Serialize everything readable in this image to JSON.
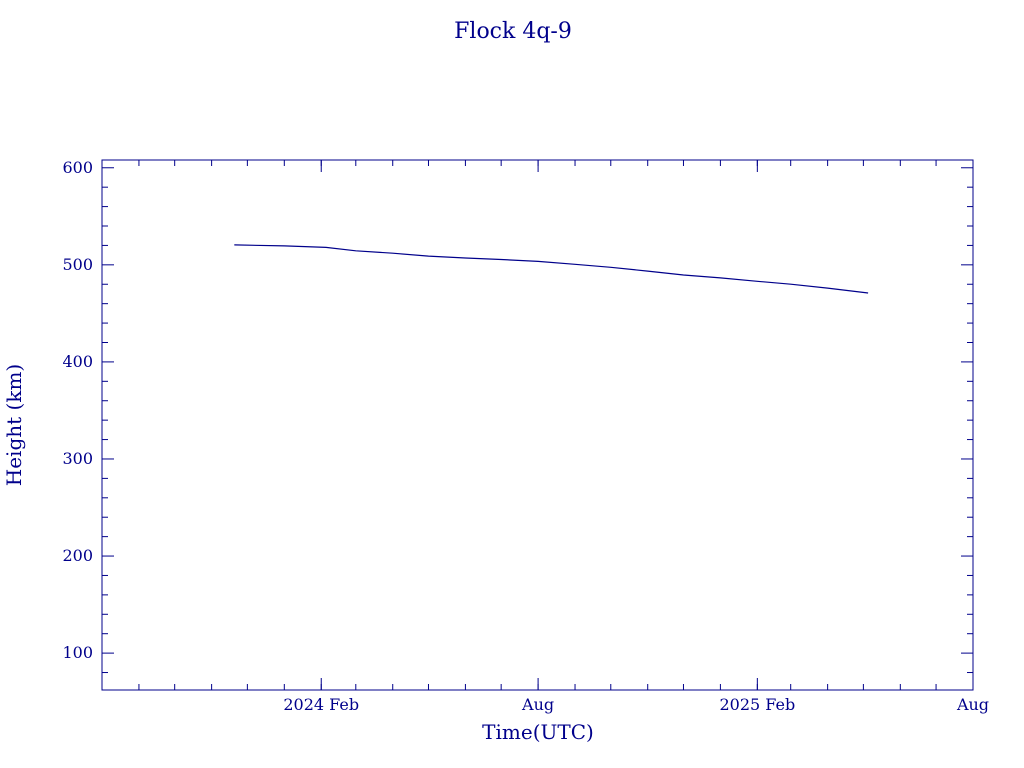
{
  "chart_data": {
    "type": "line",
    "title": "Flock 4q-9",
    "xlabel": "Time(UTC)",
    "ylabel": "Height (km)",
    "x_ticks": [
      {
        "date": "2024-02-01",
        "label": "2024 Feb"
      },
      {
        "date": "2024-08-01",
        "label": "Aug"
      },
      {
        "date": "2025-02-01",
        "label": "2025 Feb"
      },
      {
        "date": "2025-08-01",
        "label": "Aug"
      }
    ],
    "y_ticks": [
      100,
      200,
      300,
      400,
      500,
      600
    ],
    "xlim": [
      "2023-08-01",
      "2025-08-01"
    ],
    "ylim": [
      62,
      608
    ],
    "grid": false,
    "color": "#00008b",
    "series": [
      {
        "points": [
          {
            "x": "2023-11-20",
            "y": 520.5
          },
          {
            "x": "2024-01-01",
            "y": 519.5
          },
          {
            "x": "2024-02-05",
            "y": 518.0
          },
          {
            "x": "2024-03-01",
            "y": 514.5
          },
          {
            "x": "2024-04-01",
            "y": 512.0
          },
          {
            "x": "2024-05-01",
            "y": 509.0
          },
          {
            "x": "2024-06-01",
            "y": 507.0
          },
          {
            "x": "2024-07-01",
            "y": 505.5
          },
          {
            "x": "2024-08-01",
            "y": 503.5
          },
          {
            "x": "2024-09-01",
            "y": 500.5
          },
          {
            "x": "2024-10-01",
            "y": 497.5
          },
          {
            "x": "2024-11-01",
            "y": 493.5
          },
          {
            "x": "2024-12-01",
            "y": 489.5
          },
          {
            "x": "2025-01-01",
            "y": 486.5
          },
          {
            "x": "2025-02-01",
            "y": 483.0
          },
          {
            "x": "2025-03-01",
            "y": 480.0
          },
          {
            "x": "2025-04-01",
            "y": 476.0
          },
          {
            "x": "2025-05-05",
            "y": 471.0
          }
        ]
      }
    ]
  }
}
